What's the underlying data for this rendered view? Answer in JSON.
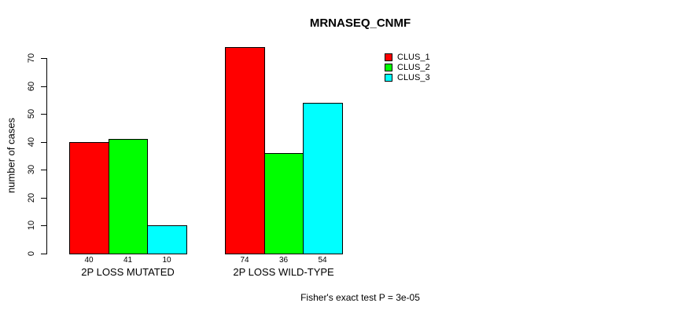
{
  "chart_data": {
    "type": "bar",
    "title": "MRNASEQ_CNMF",
    "ylabel": "number of cases",
    "xlabel": "",
    "categories": [
      "2P LOSS MUTATED",
      "2P LOSS WILD-TYPE"
    ],
    "series": [
      {
        "name": "CLUS_1",
        "color": "#ff0000",
        "values": [
          40,
          74
        ]
      },
      {
        "name": "CLUS_2",
        "color": "#00ff00",
        "values": [
          41,
          36
        ]
      },
      {
        "name": "CLUS_3",
        "color": "#00ffff",
        "values": [
          10,
          54
        ]
      }
    ],
    "ylim": [
      0,
      70
    ],
    "yticks": [
      0,
      10,
      20,
      30,
      40,
      50,
      60,
      70
    ],
    "grid": false,
    "bar_value_labels": true,
    "legend_position": "top-right",
    "legend": [
      "CLUS_1",
      "CLUS_2",
      "CLUS_3"
    ],
    "annotation": "Fisher's exact test P = 3e-05",
    "bar_border_color": "#000000",
    "background": "#ffffff"
  }
}
